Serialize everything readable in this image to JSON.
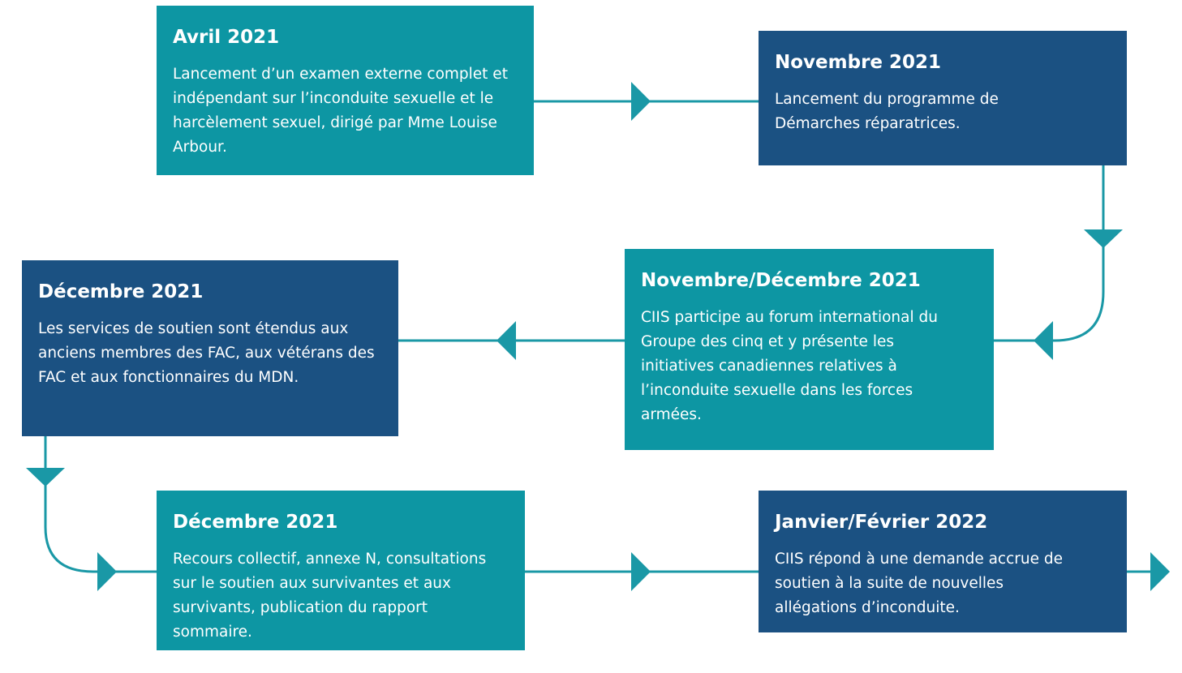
{
  "boxes": [
    {
      "title": "Avril 2021",
      "text": "Lancement d’un examen externe complet et indépendant sur l’inconduite sexuelle et le harcèlement sexuel, dirigé par Mme Louise Arbour."
    },
    {
      "title": "Novembre 2021",
      "text": "Lancement du programme de Démarches réparatrices."
    },
    {
      "title": "Novembre/Décembre 2021",
      "text": "CIIS participe au forum international du Groupe des cinq et y présente les initiatives canadiennes relatives à l’inconduite sexuelle dans les forces armées."
    },
    {
      "title": "Décembre 2021",
      "text": "Les services de soutien sont étendus aux anciens membres des FAC, aux vétérans des FAC et aux fonctionnaires du MDN."
    },
    {
      "title": "Décembre 2021",
      "text": "Recours collectif, annexe N, consultations sur le soutien aux survivantes et aux survivants, publication du rapport sommaire."
    },
    {
      "title": "Janvier/Février 2022",
      "text": "CIIS répond à une demande accrue de soutien à la suite de nouvelles allégations d’inconduite."
    }
  ]
}
